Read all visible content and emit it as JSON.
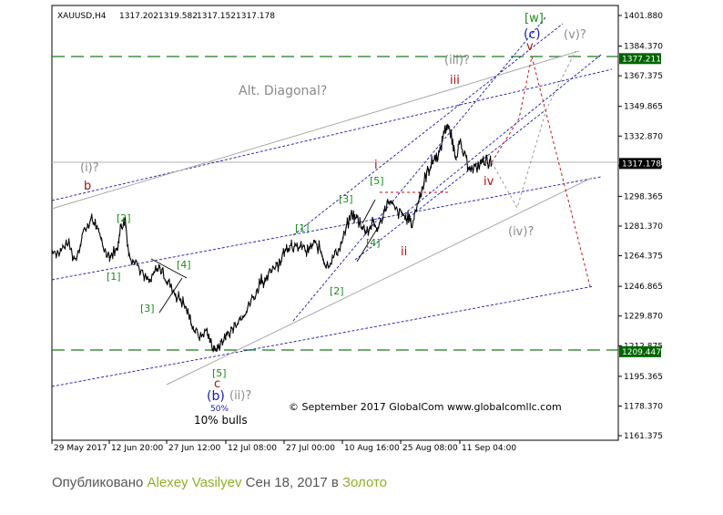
{
  "chart_data": {
    "type": "candlestick",
    "symbol_header": "XAUUSD,H4",
    "ohlc_header": [
      "1317.202",
      "1319.582",
      "1317.152",
      "1317.178"
    ],
    "ylim": [
      1161.375,
      1401.88
    ],
    "y_ticks": [
      "1401.880",
      "1384.370",
      "1367.375",
      "1349.865",
      "1332.870",
      "1315.875",
      "1298.365",
      "1281.370",
      "1264.375",
      "1246.865",
      "1229.870",
      "1212.875",
      "1195.365",
      "1178.370",
      "1161.375"
    ],
    "x_ticks": [
      "29 May 2017",
      "12 Jun 20:00",
      "27 Jun 12:00",
      "12 Jul 08:00",
      "27 Jul 00:00",
      "10 Aug 16:00",
      "25 Aug 08:00",
      "11 Sep 04:00"
    ],
    "level_tags": [
      {
        "value": 1377.211,
        "label": "1377.211",
        "color": "#006400"
      },
      {
        "value": 1317.178,
        "label": "1317.178",
        "color": "#000000"
      },
      {
        "value": 1209.447,
        "label": "1209.447",
        "color": "#006400"
      }
    ],
    "price_path": [
      [
        0,
        1268
      ],
      [
        8,
        1266
      ],
      [
        15,
        1272
      ],
      [
        22,
        1262
      ],
      [
        30,
        1278
      ],
      [
        38,
        1285
      ],
      [
        42,
        1282
      ],
      [
        50,
        1268
      ],
      [
        56,
        1265
      ],
      [
        62,
        1268
      ],
      [
        66,
        1281
      ],
      [
        70,
        1284
      ],
      [
        74,
        1264
      ],
      [
        80,
        1262
      ],
      [
        88,
        1252
      ],
      [
        95,
        1250
      ],
      [
        100,
        1258
      ],
      [
        106,
        1255
      ],
      [
        112,
        1248
      ],
      [
        118,
        1242
      ],
      [
        124,
        1238
      ],
      [
        130,
        1232
      ],
      [
        136,
        1222
      ],
      [
        142,
        1218
      ],
      [
        148,
        1222
      ],
      [
        152,
        1214
      ],
      [
        156,
        1210
      ],
      [
        160,
        1213
      ],
      [
        166,
        1218
      ],
      [
        172,
        1222
      ],
      [
        178,
        1228
      ],
      [
        184,
        1232
      ],
      [
        190,
        1238
      ],
      [
        196,
        1244
      ],
      [
        200,
        1252
      ],
      [
        204,
        1248
      ],
      [
        210,
        1258
      ],
      [
        216,
        1260
      ],
      [
        222,
        1266
      ],
      [
        228,
        1272
      ],
      [
        232,
        1268
      ],
      [
        238,
        1270
      ],
      [
        244,
        1266
      ],
      [
        250,
        1272
      ],
      [
        256,
        1268
      ],
      [
        262,
        1258
      ],
      [
        268,
        1263
      ],
      [
        274,
        1268
      ],
      [
        280,
        1278
      ],
      [
        286,
        1288
      ],
      [
        290,
        1286
      ],
      [
        296,
        1282
      ],
      [
        300,
        1278
      ],
      [
        306,
        1282
      ],
      [
        312,
        1280
      ],
      [
        318,
        1292
      ],
      [
        322,
        1296
      ],
      [
        328,
        1290
      ],
      [
        334,
        1288
      ],
      [
        340,
        1286
      ],
      [
        344,
        1282
      ],
      [
        350,
        1296
      ],
      [
        354,
        1304
      ],
      [
        358,
        1312
      ],
      [
        362,
        1316
      ],
      [
        366,
        1321
      ],
      [
        370,
        1322
      ],
      [
        374,
        1335
      ],
      [
        378,
        1340
      ],
      [
        382,
        1330
      ],
      [
        386,
        1322
      ],
      [
        390,
        1328
      ],
      [
        396,
        1318
      ],
      [
        402,
        1314
      ],
      [
        408,
        1316
      ],
      [
        412,
        1319
      ],
      [
        416,
        1318
      ],
      [
        420,
        1317
      ]
    ],
    "price_x_ref": "candle index 0-420 mapped across plot",
    "labels": {
      "top_w": "[w]",
      "top_c": "(c)",
      "v_q": "(v)?",
      "iii_q": "(iii)?",
      "iii": "iii",
      "v": "v",
      "alt_diag": "Alt. Diagonal?",
      "i_q": "(i)?",
      "b": "b",
      "br2_left": "[2]",
      "br1_left": "[1]",
      "br3_left": "[3]",
      "br4_left": "[4]",
      "br5_bottom": "[5]",
      "c": "c",
      "b_paren": "(b)",
      "ii_q": "(ii)?",
      "pct": "50%",
      "bulls": "10% bulls",
      "br1_mid": "[1]",
      "br2_mid": "[2]",
      "br3_mid": "[3]",
      "br4_mid": "[4]",
      "br5_mid": "[5]",
      "i_red": "i",
      "ii_red": "ii",
      "iv_red": "iv",
      "iv_q": "(iv)?",
      "copyright": "© September 2017 GlobalCom www.globalcomllc.com"
    }
  },
  "caption": {
    "prefix": "Опубликовано",
    "author": "Alexey Vasilyev",
    "date": "Сен 18, 2017",
    "in_word": "в",
    "category": "Золото"
  }
}
